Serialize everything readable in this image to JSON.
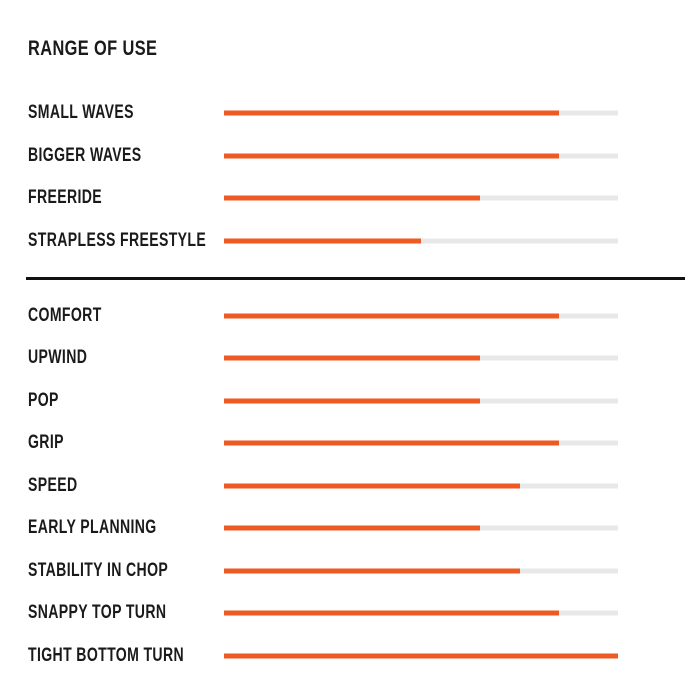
{
  "title": "RANGE OF USE",
  "colors": {
    "bar_fill": "#EE5A23",
    "bar_track": "#E8E8E8",
    "text": "#1A1A1A",
    "divider": "#111111",
    "background": "#FFFFFF"
  },
  "chart_data": {
    "type": "bar",
    "orientation": "horizontal",
    "title": "RANGE OF USE",
    "value_unit": "percent",
    "value_range": [
      0,
      100
    ],
    "grid": false,
    "legend": false,
    "sections": [
      {
        "name": "range-of-use",
        "items": [
          {
            "label": "SMALL WAVES",
            "value": 85
          },
          {
            "label": "BIGGER WAVES",
            "value": 85
          },
          {
            "label": "FREERIDE",
            "value": 65
          },
          {
            "label": "STRAPLESS FREESTYLE",
            "value": 50
          }
        ]
      },
      {
        "name": "characteristics",
        "items": [
          {
            "label": "COMFORT",
            "value": 85
          },
          {
            "label": "UPWIND",
            "value": 65
          },
          {
            "label": "POP",
            "value": 65
          },
          {
            "label": "GRIP",
            "value": 85
          },
          {
            "label": "SPEED",
            "value": 75
          },
          {
            "label": "EARLY PLANNING",
            "value": 65
          },
          {
            "label": "STABILITY IN CHOP",
            "value": 75
          },
          {
            "label": "SNAPPY TOP TURN",
            "value": 85
          },
          {
            "label": "TIGHT BOTTOM TURN",
            "value": 100
          }
        ]
      }
    ]
  }
}
